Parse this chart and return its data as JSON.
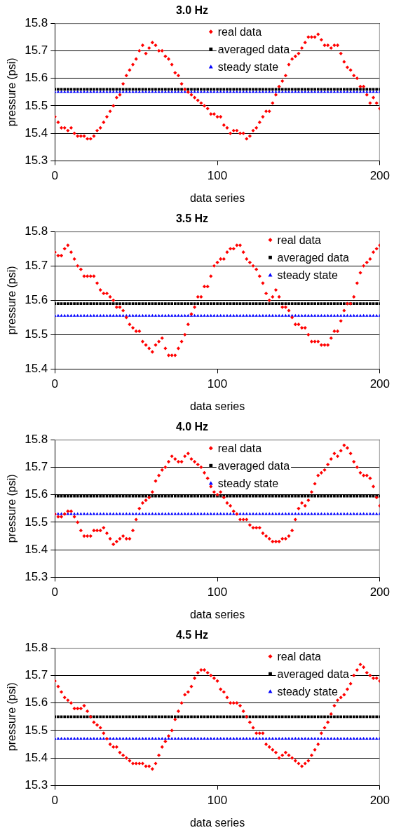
{
  "chart_data": [
    {
      "type": "scatter",
      "title": "3.0 Hz",
      "xlabel": "data series",
      "ylabel": "pressure (psi)",
      "xlim": [
        0,
        200
      ],
      "xticks": [
        0,
        100,
        200
      ],
      "ylim": [
        15.3,
        15.8
      ],
      "yticks": [
        15.3,
        15.4,
        15.5,
        15.6,
        15.7,
        15.8
      ],
      "grid": "y",
      "legend": "top",
      "x": [
        0,
        2,
        4,
        6,
        8,
        10,
        12,
        14,
        16,
        18,
        20,
        22,
        24,
        26,
        28,
        30,
        32,
        34,
        36,
        38,
        40,
        42,
        44,
        46,
        48,
        50,
        52,
        54,
        56,
        58,
        60,
        62,
        64,
        66,
        68,
        70,
        72,
        74,
        76,
        78,
        80,
        82,
        84,
        86,
        88,
        90,
        92,
        94,
        96,
        98,
        100,
        102,
        104,
        106,
        108,
        110,
        112,
        114,
        116,
        118,
        120,
        122,
        124,
        126,
        128,
        130,
        132,
        134,
        136,
        138,
        140,
        142,
        144,
        146,
        148,
        150,
        152,
        154,
        156,
        158,
        160,
        162,
        164,
        166,
        168,
        170,
        172,
        174,
        176,
        178,
        180,
        182,
        184,
        186,
        188,
        190,
        192,
        194,
        196,
        198,
        200
      ],
      "series": [
        {
          "name": "real data",
          "color": "#ff0000",
          "marker": "diamond",
          "values": [
            15.46,
            15.44,
            15.42,
            15.42,
            15.41,
            15.42,
            15.4,
            15.39,
            15.39,
            15.39,
            15.38,
            15.38,
            15.39,
            15.41,
            15.42,
            15.44,
            15.46,
            15.48,
            15.5,
            15.53,
            15.54,
            15.58,
            15.61,
            15.63,
            15.65,
            15.67,
            15.7,
            15.72,
            15.69,
            15.71,
            15.73,
            15.72,
            15.7,
            15.7,
            15.68,
            15.67,
            15.65,
            15.62,
            15.61,
            15.58,
            15.56,
            15.55,
            15.54,
            15.53,
            15.52,
            15.51,
            15.5,
            15.49,
            15.47,
            15.47,
            15.46,
            15.46,
            15.43,
            15.42,
            15.4,
            15.41,
            15.41,
            15.4,
            15.4,
            15.38,
            15.39,
            15.41,
            15.42,
            15.44,
            15.46,
            15.48,
            15.48,
            15.51,
            15.54,
            15.57,
            15.59,
            15.61,
            15.65,
            15.67,
            15.68,
            15.69,
            15.71,
            15.73,
            15.75,
            15.75,
            15.75,
            15.76,
            15.74,
            15.72,
            15.72,
            15.71,
            15.72,
            15.72,
            15.69,
            15.66,
            15.64,
            15.63,
            15.61,
            15.6,
            15.57,
            15.57,
            15.54,
            15.51,
            15.53,
            15.51,
            15.49
          ]
        },
        {
          "name": "averaged data",
          "color": "#000000",
          "marker": "square",
          "values": [
            15.56,
            15.56,
            15.56,
            15.56,
            15.56,
            15.56,
            15.56,
            15.56,
            15.56,
            15.56,
            15.56,
            15.56,
            15.56,
            15.56,
            15.56,
            15.56,
            15.56,
            15.56,
            15.56,
            15.56,
            15.56,
            15.56,
            15.56,
            15.56,
            15.56,
            15.56,
            15.56,
            15.56,
            15.56,
            15.56,
            15.56,
            15.56,
            15.56,
            15.56,
            15.56,
            15.56,
            15.56,
            15.56,
            15.56,
            15.56,
            15.56,
            15.56,
            15.56,
            15.56,
            15.56,
            15.56,
            15.56,
            15.56,
            15.56,
            15.56,
            15.56,
            15.56,
            15.56,
            15.56,
            15.56,
            15.56,
            15.56,
            15.56,
            15.56,
            15.56,
            15.56,
            15.56,
            15.56,
            15.56,
            15.56,
            15.56,
            15.56,
            15.56,
            15.56,
            15.56,
            15.56,
            15.56,
            15.56,
            15.56,
            15.56,
            15.56,
            15.56,
            15.56,
            15.56,
            15.56,
            15.56,
            15.56,
            15.56,
            15.56,
            15.56,
            15.56,
            15.56,
            15.56,
            15.56,
            15.56,
            15.56,
            15.56,
            15.56,
            15.56,
            15.56,
            15.56,
            15.56,
            15.56,
            15.56,
            15.56,
            15.56
          ]
        },
        {
          "name": "steady state",
          "color": "#0000ff",
          "marker": "triangle",
          "values": [
            15.55,
            15.55,
            15.55,
            15.55,
            15.55,
            15.55,
            15.55,
            15.55,
            15.55,
            15.55,
            15.55,
            15.55,
            15.55,
            15.55,
            15.55,
            15.55,
            15.55,
            15.55,
            15.55,
            15.55,
            15.55,
            15.55,
            15.55,
            15.55,
            15.55,
            15.55,
            15.55,
            15.55,
            15.55,
            15.55,
            15.55,
            15.55,
            15.55,
            15.55,
            15.55,
            15.55,
            15.55,
            15.55,
            15.55,
            15.55,
            15.55,
            15.55,
            15.55,
            15.55,
            15.55,
            15.55,
            15.55,
            15.55,
            15.55,
            15.55,
            15.55,
            15.55,
            15.55,
            15.55,
            15.55,
            15.55,
            15.55,
            15.55,
            15.55,
            15.55,
            15.55,
            15.55,
            15.55,
            15.55,
            15.55,
            15.55,
            15.55,
            15.55,
            15.55,
            15.55,
            15.55,
            15.55,
            15.55,
            15.55,
            15.55,
            15.55,
            15.55,
            15.55,
            15.55,
            15.55,
            15.55,
            15.55,
            15.55,
            15.55,
            15.55,
            15.55,
            15.55,
            15.55,
            15.55,
            15.55,
            15.55,
            15.55,
            15.55,
            15.55,
            15.55,
            15.55,
            15.55,
            15.55,
            15.55,
            15.55,
            15.55
          ]
        }
      ]
    },
    {
      "type": "scatter",
      "title": "3.5 Hz",
      "xlabel": "data series",
      "ylabel": "pressure (psi)",
      "xlim": [
        0,
        200
      ],
      "xticks": [
        0,
        100,
        200
      ],
      "ylim": [
        15.4,
        15.8
      ],
      "yticks": [
        15.4,
        15.5,
        15.6,
        15.7,
        15.8
      ],
      "grid": "y",
      "legend": "top right",
      "x": [
        0,
        2,
        4,
        6,
        8,
        10,
        12,
        14,
        16,
        18,
        20,
        22,
        24,
        26,
        28,
        30,
        32,
        34,
        36,
        38,
        40,
        42,
        44,
        46,
        48,
        50,
        52,
        54,
        56,
        58,
        60,
        62,
        64,
        66,
        68,
        70,
        72,
        74,
        76,
        78,
        80,
        82,
        84,
        86,
        88,
        90,
        92,
        94,
        96,
        98,
        100,
        102,
        104,
        106,
        108,
        110,
        112,
        114,
        116,
        118,
        120,
        122,
        124,
        126,
        128,
        130,
        132,
        134,
        136,
        138,
        140,
        142,
        144,
        146,
        148,
        150,
        152,
        154,
        156,
        158,
        160,
        162,
        164,
        166,
        168,
        170,
        172,
        174,
        176,
        178,
        180,
        182,
        184,
        186,
        188,
        190,
        192,
        194,
        196,
        198,
        200
      ],
      "series": [
        {
          "name": "real data",
          "color": "#ff0000",
          "marker": "diamond",
          "values": [
            15.74,
            15.73,
            15.73,
            15.75,
            15.76,
            15.74,
            15.72,
            15.7,
            15.69,
            15.67,
            15.67,
            15.67,
            15.67,
            15.65,
            15.63,
            15.62,
            15.62,
            15.61,
            15.6,
            15.58,
            15.58,
            15.57,
            15.55,
            15.53,
            15.52,
            15.51,
            15.51,
            15.48,
            15.47,
            15.46,
            15.45,
            15.47,
            15.48,
            15.49,
            15.46,
            15.44,
            15.44,
            15.44,
            15.46,
            15.48,
            15.5,
            15.53,
            15.56,
            15.58,
            15.61,
            15.61,
            15.64,
            15.64,
            15.67,
            15.7,
            15.71,
            15.72,
            15.72,
            15.74,
            15.75,
            15.75,
            15.76,
            15.76,
            15.74,
            15.72,
            15.71,
            15.7,
            15.69,
            15.67,
            15.65,
            15.62,
            15.6,
            15.61,
            15.63,
            15.61,
            15.58,
            15.58,
            15.57,
            15.55,
            15.53,
            15.53,
            15.52,
            15.52,
            15.5,
            15.48,
            15.48,
            15.48,
            15.47,
            15.47,
            15.47,
            15.49,
            15.51,
            15.51,
            15.54,
            15.57,
            15.59,
            15.59,
            15.61,
            15.65,
            15.68,
            15.7,
            15.71,
            15.72,
            15.74,
            15.75,
            15.76
          ]
        },
        {
          "name": "averaged data",
          "color": "#000000",
          "marker": "square",
          "values": [
            15.59,
            15.59,
            15.59,
            15.59,
            15.59,
            15.59,
            15.59,
            15.59,
            15.59,
            15.59,
            15.59,
            15.59,
            15.59,
            15.59,
            15.59,
            15.59,
            15.59,
            15.59,
            15.59,
            15.59,
            15.59,
            15.59,
            15.59,
            15.59,
            15.59,
            15.59,
            15.59,
            15.59,
            15.59,
            15.59,
            15.59,
            15.59,
            15.59,
            15.59,
            15.59,
            15.59,
            15.59,
            15.59,
            15.59,
            15.59,
            15.59,
            15.59,
            15.59,
            15.59,
            15.59,
            15.59,
            15.59,
            15.59,
            15.59,
            15.59,
            15.59,
            15.59,
            15.59,
            15.59,
            15.59,
            15.59,
            15.59,
            15.59,
            15.59,
            15.59,
            15.59,
            15.59,
            15.59,
            15.59,
            15.59,
            15.59,
            15.59,
            15.59,
            15.59,
            15.59,
            15.59,
            15.59,
            15.59,
            15.59,
            15.59,
            15.59,
            15.59,
            15.59,
            15.59,
            15.59,
            15.59,
            15.59,
            15.59,
            15.59,
            15.59,
            15.59,
            15.59,
            15.59,
            15.59,
            15.59,
            15.59,
            15.59,
            15.59,
            15.59,
            15.59,
            15.59,
            15.59,
            15.59,
            15.59,
            15.59,
            15.59
          ]
        },
        {
          "name": "steady state",
          "color": "#0000ff",
          "marker": "triangle",
          "values": [
            15.555,
            15.555,
            15.555,
            15.555,
            15.555,
            15.555,
            15.555,
            15.555,
            15.555,
            15.555,
            15.555,
            15.555,
            15.555,
            15.555,
            15.555,
            15.555,
            15.555,
            15.555,
            15.555,
            15.555,
            15.555,
            15.555,
            15.555,
            15.555,
            15.555,
            15.555,
            15.555,
            15.555,
            15.555,
            15.555,
            15.555,
            15.555,
            15.555,
            15.555,
            15.555,
            15.555,
            15.555,
            15.555,
            15.555,
            15.555,
            15.555,
            15.555,
            15.555,
            15.555,
            15.555,
            15.555,
            15.555,
            15.555,
            15.555,
            15.555,
            15.555,
            15.555,
            15.555,
            15.555,
            15.555,
            15.555,
            15.555,
            15.555,
            15.555,
            15.555,
            15.555,
            15.555,
            15.555,
            15.555,
            15.555,
            15.555,
            15.555,
            15.555,
            15.555,
            15.555,
            15.555,
            15.555,
            15.555,
            15.555,
            15.555,
            15.555,
            15.555,
            15.555,
            15.555,
            15.555,
            15.555,
            15.555,
            15.555,
            15.555,
            15.555,
            15.555,
            15.555,
            15.555,
            15.555,
            15.555,
            15.555,
            15.555,
            15.555,
            15.555,
            15.555,
            15.555,
            15.555,
            15.555,
            15.555,
            15.555,
            15.555
          ]
        }
      ]
    },
    {
      "type": "scatter",
      "title": "4.0 Hz",
      "xlabel": "data series",
      "ylabel": "pressure (psi)",
      "xlim": [
        0,
        200
      ],
      "xticks": [
        0,
        100,
        200
      ],
      "ylim": [
        15.3,
        15.8
      ],
      "yticks": [
        15.3,
        15.4,
        15.5,
        15.6,
        15.7,
        15.8
      ],
      "grid": "y",
      "legend": "top",
      "x": [
        0,
        2,
        4,
        6,
        8,
        10,
        12,
        14,
        16,
        18,
        20,
        22,
        24,
        26,
        28,
        30,
        32,
        34,
        36,
        38,
        40,
        42,
        44,
        46,
        48,
        50,
        52,
        54,
        56,
        58,
        60,
        62,
        64,
        66,
        68,
        70,
        72,
        74,
        76,
        78,
        80,
        82,
        84,
        86,
        88,
        90,
        92,
        94,
        96,
        98,
        100,
        102,
        104,
        106,
        108,
        110,
        112,
        114,
        116,
        118,
        120,
        122,
        124,
        126,
        128,
        130,
        132,
        134,
        136,
        138,
        140,
        142,
        144,
        146,
        148,
        150,
        152,
        154,
        156,
        158,
        160,
        162,
        164,
        166,
        168,
        170,
        172,
        174,
        176,
        178,
        180,
        182,
        184,
        186,
        188,
        190,
        192,
        194,
        196,
        198,
        200
      ],
      "series": [
        {
          "name": "real data",
          "color": "#ff0000",
          "marker": "diamond",
          "values": [
            15.53,
            15.52,
            15.52,
            15.53,
            15.54,
            15.54,
            15.52,
            15.5,
            15.47,
            15.45,
            15.45,
            15.45,
            15.47,
            15.47,
            15.47,
            15.48,
            15.46,
            15.44,
            15.42,
            15.43,
            15.44,
            15.45,
            15.44,
            15.44,
            15.47,
            15.51,
            15.55,
            15.57,
            15.58,
            15.59,
            15.61,
            15.65,
            15.67,
            15.69,
            15.7,
            15.72,
            15.74,
            15.73,
            15.72,
            15.72,
            15.74,
            15.75,
            15.73,
            15.72,
            15.71,
            15.7,
            15.68,
            15.66,
            15.63,
            15.61,
            15.6,
            15.61,
            15.59,
            15.57,
            15.56,
            15.54,
            15.53,
            15.51,
            15.51,
            15.51,
            15.49,
            15.48,
            15.48,
            15.48,
            15.46,
            15.45,
            15.44,
            15.43,
            15.43,
            15.43,
            15.44,
            15.44,
            15.45,
            15.47,
            15.51,
            15.55,
            15.57,
            15.56,
            15.58,
            15.61,
            15.64,
            15.67,
            15.68,
            15.69,
            15.71,
            15.73,
            15.75,
            15.74,
            15.76,
            15.78,
            15.77,
            15.75,
            15.72,
            15.7,
            15.68,
            15.67,
            15.67,
            15.66,
            15.63,
            15.59,
            15.56
          ]
        },
        {
          "name": "averaged data",
          "color": "#000000",
          "marker": "square",
          "values": [
            15.595,
            15.595,
            15.595,
            15.595,
            15.595,
            15.595,
            15.595,
            15.595,
            15.595,
            15.595,
            15.595,
            15.595,
            15.595,
            15.595,
            15.595,
            15.595,
            15.595,
            15.595,
            15.595,
            15.595,
            15.595,
            15.595,
            15.595,
            15.595,
            15.595,
            15.595,
            15.595,
            15.595,
            15.595,
            15.595,
            15.595,
            15.595,
            15.595,
            15.595,
            15.595,
            15.595,
            15.595,
            15.595,
            15.595,
            15.595,
            15.595,
            15.595,
            15.595,
            15.595,
            15.595,
            15.595,
            15.595,
            15.595,
            15.595,
            15.595,
            15.595,
            15.595,
            15.595,
            15.595,
            15.595,
            15.595,
            15.595,
            15.595,
            15.595,
            15.595,
            15.595,
            15.595,
            15.595,
            15.595,
            15.595,
            15.595,
            15.595,
            15.595,
            15.595,
            15.595,
            15.595,
            15.595,
            15.595,
            15.595,
            15.595,
            15.595,
            15.595,
            15.595,
            15.595,
            15.595,
            15.595,
            15.595,
            15.595,
            15.595,
            15.595,
            15.595,
            15.595,
            15.595,
            15.595,
            15.595,
            15.595,
            15.595,
            15.595,
            15.595,
            15.595,
            15.595,
            15.595,
            15.595,
            15.595,
            15.595,
            15.595
          ]
        },
        {
          "name": "steady state",
          "color": "#0000ff",
          "marker": "triangle",
          "values": [
            15.53,
            15.53,
            15.53,
            15.53,
            15.53,
            15.53,
            15.53,
            15.53,
            15.53,
            15.53,
            15.53,
            15.53,
            15.53,
            15.53,
            15.53,
            15.53,
            15.53,
            15.53,
            15.53,
            15.53,
            15.53,
            15.53,
            15.53,
            15.53,
            15.53,
            15.53,
            15.53,
            15.53,
            15.53,
            15.53,
            15.53,
            15.53,
            15.53,
            15.53,
            15.53,
            15.53,
            15.53,
            15.53,
            15.53,
            15.53,
            15.53,
            15.53,
            15.53,
            15.53,
            15.53,
            15.53,
            15.53,
            15.53,
            15.53,
            15.53,
            15.53,
            15.53,
            15.53,
            15.53,
            15.53,
            15.53,
            15.53,
            15.53,
            15.53,
            15.53,
            15.53,
            15.53,
            15.53,
            15.53,
            15.53,
            15.53,
            15.53,
            15.53,
            15.53,
            15.53,
            15.53,
            15.53,
            15.53,
            15.53,
            15.53,
            15.53,
            15.53,
            15.53,
            15.53,
            15.53,
            15.53,
            15.53,
            15.53,
            15.53,
            15.53,
            15.53,
            15.53,
            15.53,
            15.53,
            15.53,
            15.53,
            15.53,
            15.53,
            15.53,
            15.53,
            15.53,
            15.53,
            15.53,
            15.53,
            15.53,
            15.53
          ]
        }
      ]
    },
    {
      "type": "scatter",
      "title": "4.5 Hz",
      "xlabel": "data series",
      "ylabel": "pressure (psi)",
      "xlim": [
        0,
        200
      ],
      "xticks": [
        0,
        100,
        200
      ],
      "ylim": [
        15.3,
        15.8
      ],
      "yticks": [
        15.3,
        15.4,
        15.5,
        15.6,
        15.7,
        15.8
      ],
      "grid": "y",
      "legend": "top right",
      "x": [
        0,
        2,
        4,
        6,
        8,
        10,
        12,
        14,
        16,
        18,
        20,
        22,
        24,
        26,
        28,
        30,
        32,
        34,
        36,
        38,
        40,
        42,
        44,
        46,
        48,
        50,
        52,
        54,
        56,
        58,
        60,
        62,
        64,
        66,
        68,
        70,
        72,
        74,
        76,
        78,
        80,
        82,
        84,
        86,
        88,
        90,
        92,
        94,
        96,
        98,
        100,
        102,
        104,
        106,
        108,
        110,
        112,
        114,
        116,
        118,
        120,
        122,
        124,
        126,
        128,
        130,
        132,
        134,
        136,
        138,
        140,
        142,
        144,
        146,
        148,
        150,
        152,
        154,
        156,
        158,
        160,
        162,
        164,
        166,
        168,
        170,
        172,
        174,
        176,
        178,
        180,
        182,
        184,
        186,
        188,
        190,
        192,
        194,
        196,
        198,
        200
      ],
      "series": [
        {
          "name": "real data",
          "color": "#ff0000",
          "marker": "diamond",
          "values": [
            15.68,
            15.66,
            15.64,
            15.62,
            15.61,
            15.6,
            15.58,
            15.58,
            15.58,
            15.59,
            15.57,
            15.55,
            15.53,
            15.52,
            15.51,
            15.49,
            15.47,
            15.45,
            15.44,
            15.44,
            15.42,
            15.41,
            15.4,
            15.39,
            15.38,
            15.38,
            15.38,
            15.38,
            15.37,
            15.37,
            15.36,
            15.38,
            15.41,
            15.44,
            15.46,
            15.48,
            15.5,
            15.54,
            15.57,
            15.6,
            15.63,
            15.64,
            15.66,
            15.69,
            15.71,
            15.72,
            15.72,
            15.71,
            15.7,
            15.69,
            15.68,
            15.65,
            15.64,
            15.62,
            15.6,
            15.6,
            15.6,
            15.59,
            15.57,
            15.55,
            15.53,
            15.51,
            15.49,
            15.49,
            15.49,
            15.45,
            15.44,
            15.43,
            15.42,
            15.4,
            15.41,
            15.42,
            15.41,
            15.4,
            15.39,
            15.38,
            15.37,
            15.38,
            15.39,
            15.41,
            15.43,
            15.45,
            15.49,
            15.51,
            15.53,
            15.56,
            15.59,
            15.61,
            15.62,
            15.63,
            15.65,
            15.67,
            15.7,
            15.72,
            15.74,
            15.73,
            15.71,
            15.7,
            15.69,
            15.69,
            15.68
          ]
        },
        {
          "name": "averaged data",
          "color": "#000000",
          "marker": "square",
          "values": [
            15.55,
            15.55,
            15.55,
            15.55,
            15.55,
            15.55,
            15.55,
            15.55,
            15.55,
            15.55,
            15.55,
            15.55,
            15.55,
            15.55,
            15.55,
            15.55,
            15.55,
            15.55,
            15.55,
            15.55,
            15.55,
            15.55,
            15.55,
            15.55,
            15.55,
            15.55,
            15.55,
            15.55,
            15.55,
            15.55,
            15.55,
            15.55,
            15.55,
            15.55,
            15.55,
            15.55,
            15.55,
            15.55,
            15.55,
            15.55,
            15.55,
            15.55,
            15.55,
            15.55,
            15.55,
            15.55,
            15.55,
            15.55,
            15.55,
            15.55,
            15.55,
            15.55,
            15.55,
            15.55,
            15.55,
            15.55,
            15.55,
            15.55,
            15.55,
            15.55,
            15.55,
            15.55,
            15.55,
            15.55,
            15.55,
            15.55,
            15.55,
            15.55,
            15.55,
            15.55,
            15.55,
            15.55,
            15.55,
            15.55,
            15.55,
            15.55,
            15.55,
            15.55,
            15.55,
            15.55,
            15.55,
            15.55,
            15.55,
            15.55,
            15.55,
            15.55,
            15.55,
            15.55,
            15.55,
            15.55,
            15.55,
            15.55,
            15.55,
            15.55,
            15.55,
            15.55,
            15.55,
            15.55,
            15.55,
            15.55,
            15.55
          ]
        },
        {
          "name": "steady state",
          "color": "#0000ff",
          "marker": "triangle",
          "values": [
            15.47,
            15.47,
            15.47,
            15.47,
            15.47,
            15.47,
            15.47,
            15.47,
            15.47,
            15.47,
            15.47,
            15.47,
            15.47,
            15.47,
            15.47,
            15.47,
            15.47,
            15.47,
            15.47,
            15.47,
            15.47,
            15.47,
            15.47,
            15.47,
            15.47,
            15.47,
            15.47,
            15.47,
            15.47,
            15.47,
            15.47,
            15.47,
            15.47,
            15.47,
            15.47,
            15.47,
            15.47,
            15.47,
            15.47,
            15.47,
            15.47,
            15.47,
            15.47,
            15.47,
            15.47,
            15.47,
            15.47,
            15.47,
            15.47,
            15.47,
            15.47,
            15.47,
            15.47,
            15.47,
            15.47,
            15.47,
            15.47,
            15.47,
            15.47,
            15.47,
            15.47,
            15.47,
            15.47,
            15.47,
            15.47,
            15.47,
            15.47,
            15.47,
            15.47,
            15.47,
            15.47,
            15.47,
            15.47,
            15.47,
            15.47,
            15.47,
            15.47,
            15.47,
            15.47,
            15.47,
            15.47,
            15.47,
            15.47,
            15.47,
            15.47,
            15.47,
            15.47,
            15.47,
            15.47,
            15.47,
            15.47,
            15.47,
            15.47,
            15.47,
            15.47,
            15.47,
            15.47,
            15.47,
            15.47,
            15.47,
            15.47
          ]
        }
      ]
    }
  ]
}
